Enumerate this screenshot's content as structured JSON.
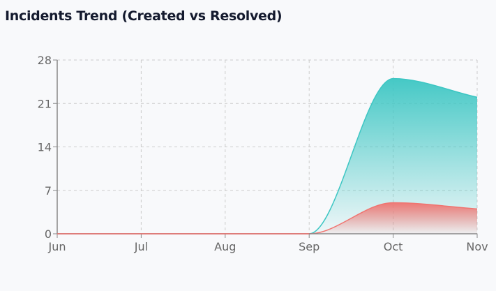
{
  "chart_data": {
    "type": "area",
    "title": "Incidents Trend (Created vs Resolved)",
    "xlabel": "",
    "ylabel": "",
    "categories": [
      "Jun",
      "Jul",
      "Aug",
      "Sep",
      "Oct",
      "Nov"
    ],
    "ylim": [
      0,
      28
    ],
    "yticks": [
      0,
      7,
      14,
      21,
      28
    ],
    "grid": true,
    "series": [
      {
        "name": "Created",
        "values": [
          0,
          0,
          0,
          0,
          25,
          22
        ],
        "color": "#3cc6c3"
      },
      {
        "name": "Resolved",
        "values": [
          0,
          0,
          0,
          0,
          5,
          4
        ],
        "color": "#f07470"
      }
    ]
  }
}
